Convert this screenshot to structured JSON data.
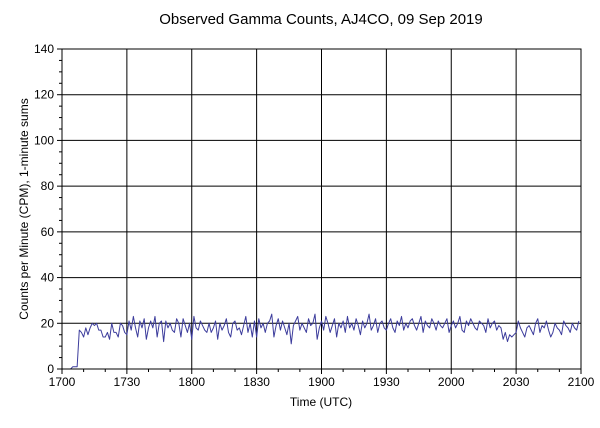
{
  "chart_data": {
    "type": "line",
    "title": "Observed Gamma Counts, AJ4CO, 09 Sep 2019",
    "xlabel": "Time (UTC)",
    "ylabel": "Counts per Minute (CPM), 1-minute sums",
    "x_tick_labels": [
      "1700",
      "1730",
      "1800",
      "1830",
      "1900",
      "1930",
      "2000",
      "2030",
      "2100"
    ],
    "y_tick_labels": [
      "0",
      "20",
      "40",
      "60",
      "80",
      "100",
      "120",
      "140"
    ],
    "x_ticks_minutes": [
      0,
      30,
      60,
      90,
      120,
      150,
      180,
      210,
      240
    ],
    "y_ticks": [
      0,
      20,
      40,
      60,
      80,
      100,
      120,
      140
    ],
    "xlim_minutes": [
      0,
      240
    ],
    "ylim": [
      0,
      140
    ],
    "grid": true,
    "line_color": "#3c3c9c",
    "series": [
      {
        "start_minute": 0,
        "values": [
          0,
          0,
          0,
          0,
          0,
          1,
          1,
          1,
          17,
          16,
          14,
          18,
          15,
          18,
          20,
          19,
          20,
          17,
          17,
          14,
          14,
          16,
          13,
          20,
          16,
          16,
          14,
          20,
          19,
          16,
          15,
          21,
          17,
          23,
          18,
          14,
          21,
          18,
          22,
          13,
          18,
          21,
          18,
          23,
          14,
          20,
          21,
          12,
          21,
          18,
          20,
          17,
          16,
          22,
          20,
          14,
          22,
          19,
          16,
          20,
          13,
          23,
          18,
          17,
          21,
          19,
          17,
          16,
          20,
          16,
          18,
          21,
          13,
          20,
          17,
          19,
          22,
          16,
          14,
          20,
          21,
          17,
          18,
          15,
          19,
          23,
          16,
          20,
          14,
          21,
          14,
          22,
          18,
          20,
          16,
          20,
          21,
          24,
          14,
          19,
          22,
          17,
          21,
          18,
          15,
          20,
          11,
          19,
          21,
          23,
          17,
          20,
          18,
          16,
          22,
          19,
          20,
          24,
          13,
          18,
          21,
          17,
          23,
          20,
          16,
          19,
          22,
          14,
          20,
          18,
          21,
          16,
          23,
          18,
          20,
          17,
          22,
          19,
          15,
          21,
          18,
          20,
          24,
          17,
          19,
          22,
          16,
          20,
          21,
          18,
          17,
          20,
          22,
          18,
          16,
          21,
          19,
          23,
          17,
          20,
          18,
          21,
          22,
          19,
          17,
          20,
          23,
          16,
          21,
          19,
          18,
          22,
          20,
          17,
          21,
          19,
          18,
          20,
          22,
          16,
          19,
          21,
          18,
          20,
          23,
          17,
          16,
          21,
          19,
          22,
          20,
          18,
          17,
          21,
          20,
          19,
          16,
          22,
          18,
          20,
          21,
          17,
          19,
          18,
          13,
          16,
          12,
          15,
          14,
          15,
          16,
          21,
          18,
          16,
          14,
          18,
          19,
          17,
          15,
          20,
          22,
          16,
          19,
          18,
          21,
          17,
          14,
          16,
          20,
          18,
          17,
          15,
          21,
          19,
          18,
          16,
          20,
          18,
          17,
          21
        ]
      }
    ]
  }
}
